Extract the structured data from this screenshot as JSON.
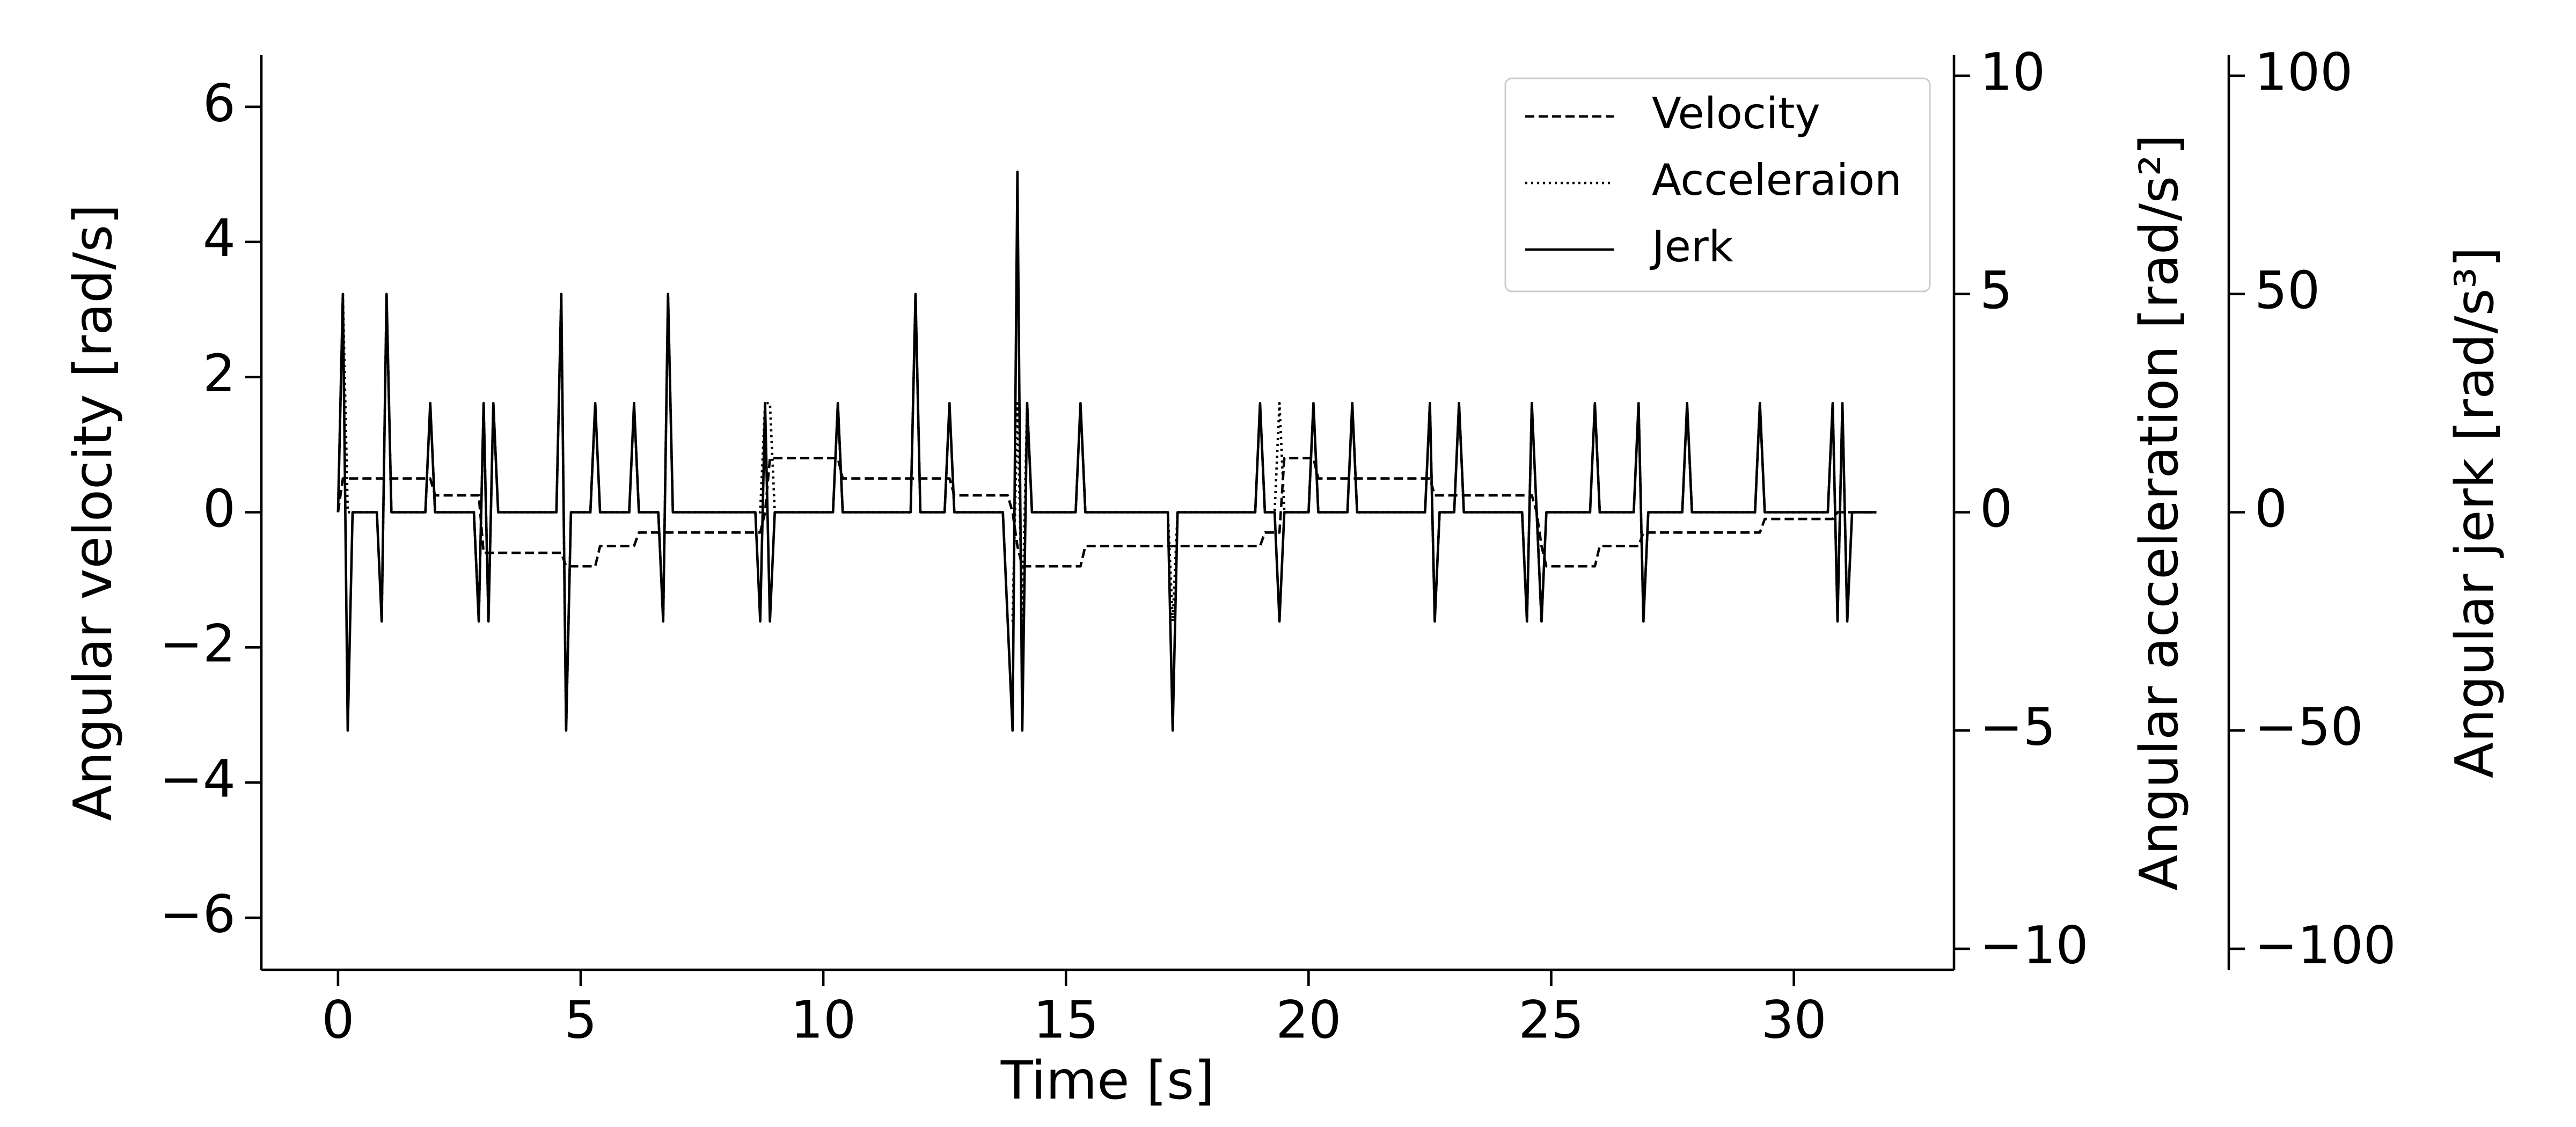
{
  "chart_data": {
    "type": "line",
    "xlabel": "Time [s]",
    "ylabel": "Angular velocity [rad/s]",
    "y2label": "Angular acceleration [rad/s²]",
    "y3label": "Angular jerk [rad/s³]",
    "legend": "upper right",
    "xlim": [
      -1.58,
      33.3
    ],
    "xticks": [
      0,
      5,
      10,
      15,
      20,
      25,
      30
    ],
    "ylim": [
      -6.77,
      6.77
    ],
    "yticks": [
      {
        "value": -6,
        "label": "−6"
      },
      {
        "value": -4,
        "label": "−4"
      },
      {
        "value": -2,
        "label": "−2"
      },
      0,
      2,
      4,
      6
    ],
    "y2lim": [
      -10.48,
      10.48
    ],
    "y2ticks": [
      {
        "value": -10,
        "label": "−10"
      },
      {
        "value": -5,
        "label": "−5"
      },
      0,
      5,
      10
    ],
    "y3lim": [
      -104.8,
      104.8
    ],
    "y3ticks": [
      {
        "value": -100,
        "label": "−100"
      },
      {
        "value": -50,
        "label": "−50"
      },
      0,
      50,
      100
    ],
    "x": [
      0,
      0.1,
      0.2,
      0.3,
      0.8,
      0.9,
      1.0,
      1.1,
      1.8,
      1.9,
      2.0,
      2.8,
      2.9,
      3.0,
      3.1,
      3.2,
      3.3,
      4.5,
      4.6,
      4.7,
      4.8,
      5.2,
      5.3,
      5.4,
      6.0,
      6.1,
      6.2,
      6.6,
      6.7,
      6.8,
      6.9,
      8.6,
      8.7,
      8.8,
      8.9,
      9.0,
      10.2,
      10.3,
      10.4,
      11.8,
      11.9,
      12.0,
      12.5,
      12.6,
      12.7,
      13.7,
      13.8,
      13.9,
      14.0,
      14.1,
      14.2,
      14.3,
      15.2,
      15.3,
      15.4,
      17.1,
      17.2,
      17.3,
      18.9,
      19.0,
      19.1,
      19.3,
      19.4,
      19.5,
      20.0,
      20.1,
      20.2,
      20.8,
      20.9,
      21.0,
      22.4,
      22.5,
      22.6,
      22.7,
      23.0,
      23.1,
      23.2,
      24.4,
      24.5,
      24.6,
      24.7,
      24.8,
      24.9,
      25.8,
      25.9,
      26.0,
      26.7,
      26.8,
      26.9,
      27.0,
      27.7,
      27.8,
      27.9,
      29.2,
      29.3,
      29.4,
      30.7,
      30.8,
      30.9,
      31.0,
      31.1,
      31.2,
      31.7
    ],
    "series": [
      {
        "name": "Velocity",
        "color": "#000000",
        "dash": "dashed",
        "axis": "y",
        "values": [
          0,
          0.5,
          0.5,
          0.5,
          0.5,
          0.5,
          0.5,
          0.5,
          0.5,
          0.5,
          0.25,
          0.25,
          0.25,
          -0.6,
          -0.6,
          -0.6,
          -0.6,
          -0.6,
          -0.6,
          -0.8,
          -0.8,
          -0.8,
          -0.8,
          -0.5,
          -0.5,
          -0.5,
          -0.3,
          -0.3,
          -0.3,
          -0.3,
          -0.3,
          -0.3,
          -0.3,
          0,
          0.8,
          0.8,
          0.8,
          0.8,
          0.5,
          0.5,
          0.5,
          0.5,
          0.5,
          0.5,
          0.25,
          0.25,
          0.25,
          0,
          -0.5,
          -0.8,
          -0.8,
          -0.8,
          -0.8,
          -0.8,
          -0.5,
          -0.5,
          -0.5,
          -0.5,
          -0.5,
          -0.5,
          -0.3,
          -0.3,
          -0.3,
          0.8,
          0.8,
          0.8,
          0.5,
          0.5,
          0.5,
          0.5,
          0.5,
          0.5,
          0.25,
          0.25,
          0.25,
          0.25,
          0.25,
          0.25,
          0.25,
          0.25,
          0,
          -0.5,
          -0.8,
          -0.8,
          -0.8,
          -0.5,
          -0.5,
          -0.5,
          -0.3,
          -0.3,
          -0.3,
          -0.3,
          -0.3,
          -0.3,
          -0.3,
          -0.1,
          -0.1,
          -0.1,
          0,
          0,
          0,
          0,
          0
        ]
      },
      {
        "name": "Acceleraion",
        "color": "#000000",
        "dash": "dotted",
        "axis": "y2",
        "values": [
          0,
          5,
          0,
          0,
          0,
          -2.5,
          5,
          0,
          0,
          2.5,
          0,
          0,
          -2.5,
          2.5,
          -2.5,
          2.5,
          0,
          0,
          5,
          -5,
          0,
          0,
          2.5,
          0,
          0,
          2.5,
          0,
          0,
          -2.5,
          5,
          0,
          0,
          0,
          2.5,
          2.5,
          0,
          0,
          2.5,
          0,
          0,
          5,
          0,
          0,
          2.5,
          0,
          0,
          -2.5,
          -2.5,
          2.5,
          -2.5,
          2.5,
          0,
          0,
          2.5,
          0,
          0,
          -2.5,
          0,
          0,
          2.5,
          0,
          0,
          2.5,
          0,
          0,
          2.5,
          0,
          0,
          2.5,
          0,
          0,
          2.5,
          -2.5,
          0,
          0,
          2.5,
          0,
          0,
          -2.5,
          2.5,
          0,
          -2.5,
          0,
          0,
          2.5,
          0,
          0,
          2.5,
          -2.5,
          0,
          0,
          2.5,
          0,
          0,
          2.5,
          0,
          0,
          2.5,
          -2.5,
          2.5,
          -2.5,
          0,
          0
        ]
      },
      {
        "name": "Jerk",
        "color": "#000000",
        "dash": "solid",
        "axis": "y3",
        "values": [
          0,
          50,
          -50,
          0,
          0,
          -25,
          50,
          0,
          0,
          25,
          0,
          0,
          -25,
          25,
          -25,
          25,
          0,
          0,
          50,
          -50,
          0,
          0,
          25,
          0,
          0,
          25,
          0,
          0,
          -25,
          50,
          0,
          0,
          -25,
          25,
          -25,
          0,
          0,
          25,
          0,
          0,
          50,
          0,
          0,
          25,
          0,
          0,
          -25,
          -50,
          78,
          -50,
          25,
          0,
          0,
          25,
          0,
          0,
          -50,
          0,
          0,
          25,
          0,
          0,
          -25,
          0,
          0,
          25,
          0,
          0,
          25,
          0,
          0,
          25,
          -25,
          0,
          0,
          25,
          0,
          0,
          -25,
          25,
          0,
          -25,
          0,
          0,
          25,
          0,
          0,
          25,
          -25,
          0,
          0,
          25,
          0,
          0,
          25,
          0,
          0,
          25,
          -25,
          25,
          -25,
          0,
          0
        ]
      }
    ]
  }
}
